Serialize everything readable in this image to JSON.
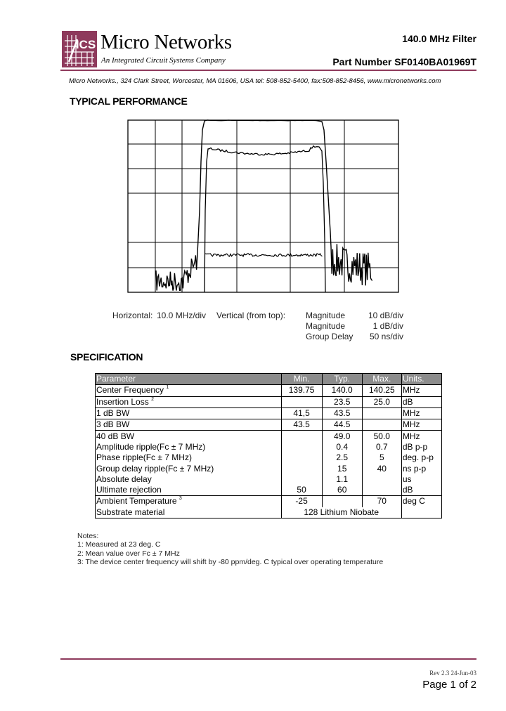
{
  "header": {
    "logo_text": "ICS",
    "brand": "Micro Networks",
    "tagline": "An Integrated Circuit Systems Company",
    "product_title": "140.0 MHz Filter",
    "part_number": "Part Number SF0140BA01969T",
    "address": "Micro Networks., 324 Clark Street, Worcester, MA 01606, USA   tel: 508-852-5400,  fax:508-852-8456,  www.micronetworks.com",
    "accent_color": "#8e3a5c"
  },
  "performance": {
    "heading": "TYPICAL PERFORMANCE",
    "horizontal_label": "Horizontal:",
    "horizontal_value": "10.0 MHz/div",
    "vertical_label": "Vertical (from top):",
    "traces": [
      {
        "name": "Magnitude",
        "scale": "10 dB/div"
      },
      {
        "name": "Magnitude",
        "scale": "1 dB/div"
      },
      {
        "name": "Group Delay",
        "scale": "50 ns/div"
      }
    ]
  },
  "specification": {
    "heading": "SPECIFICATION",
    "columns": [
      "Parameter",
      "Min.",
      "Typ.",
      "Max.",
      "Units."
    ],
    "rows": [
      {
        "param": "Center Frequency",
        "note": "1",
        "min": "139.75",
        "typ": "140.0",
        "max": "140.25",
        "units": "MHz"
      },
      {
        "param": "Insertion Loss",
        "note": "2",
        "min": "",
        "typ": "23.5",
        "max": "25.0",
        "units": "dB"
      },
      {
        "param": "1 dB BW",
        "note": "",
        "min": "41,5",
        "typ": "43.5",
        "max": "",
        "units": "MHz"
      },
      {
        "param": "3 dB BW",
        "note": "",
        "min": "43.5",
        "typ": "44.5",
        "max": "",
        "units": "MHz"
      },
      {
        "param": "40 dB BW",
        "note": "",
        "min": "",
        "typ": "49.0",
        "max": "50.0",
        "units": "MHz"
      },
      {
        "param": "Amplitude ripple(Fc ± 7 MHz)",
        "note": "",
        "min": "",
        "typ": "0.4",
        "max": "0.7",
        "units": "dB p-p"
      },
      {
        "param": "Phase ripple(Fc ± 7 MHz)",
        "note": "",
        "min": "",
        "typ": "2.5",
        "max": "5",
        "units": "deg. p-p"
      },
      {
        "param": "Group delay ripple(Fc ± 7 MHz)",
        "note": "",
        "min": "",
        "typ": "15",
        "max": "40",
        "units": "ns p-p"
      },
      {
        "param": "Absolute delay",
        "note": "",
        "min": "",
        "typ": "1.1",
        "max": "",
        "units": "us"
      },
      {
        "param": "Ultimate rejection",
        "note": "",
        "min": "50",
        "typ": "60",
        "max": "",
        "units": "dB"
      },
      {
        "param": "Ambient Temperature",
        "note": "3",
        "min": "-25",
        "typ": "",
        "max": "70",
        "units": "deg C"
      }
    ],
    "substrate": {
      "param": "Substrate material",
      "value": "128 Lithium Niobate"
    }
  },
  "notes": {
    "title": "Notes:",
    "items": [
      "1: Measured at 23 deg. C",
      "2: Mean value over Fc ± 7 MHz",
      "3: The device center frequency will shift by -80 ppm/deg. C typical over operating temperature"
    ]
  },
  "footer": {
    "revision": "Rev 2.3 24-Jun-03",
    "page": "Page 1 of 2"
  }
}
